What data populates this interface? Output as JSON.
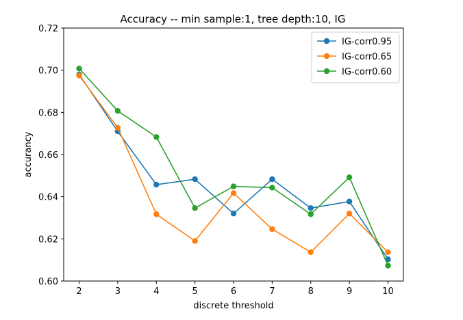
{
  "chart_data": {
    "type": "line",
    "title": "Accuracy -- min sample:1, tree depth:10, IG",
    "xlabel": "discrete threshold",
    "ylabel": "accurancy",
    "x": [
      2,
      3,
      4,
      5,
      6,
      7,
      8,
      9,
      10
    ],
    "xlim": [
      1.6,
      10.4
    ],
    "ylim": [
      0.6,
      0.72
    ],
    "xticks": [
      "2",
      "3",
      "4",
      "5",
      "6",
      "7",
      "8",
      "9",
      "10"
    ],
    "yticks": [
      "0.60",
      "0.62",
      "0.64",
      "0.66",
      "0.68",
      "0.70",
      "0.72"
    ],
    "grid": false,
    "legend_position": "top-right",
    "series": [
      {
        "name": "IG-corr0.95",
        "color": "#1f77b4",
        "values": [
          0.698,
          0.671,
          0.6457,
          0.6483,
          0.632,
          0.6483,
          0.6346,
          0.6377,
          0.6103
        ]
      },
      {
        "name": "IG-corr0.65",
        "color": "#ff7f0e",
        "values": [
          0.6975,
          0.6727,
          0.6317,
          0.619,
          0.6417,
          0.6246,
          0.6137,
          0.632,
          0.6137
        ]
      },
      {
        "name": "IG-corr0.60",
        "color": "#2ca02c",
        "values": [
          0.7008,
          0.6807,
          0.6683,
          0.6346,
          0.6449,
          0.6443,
          0.6317,
          0.6492,
          0.6073
        ]
      }
    ]
  }
}
